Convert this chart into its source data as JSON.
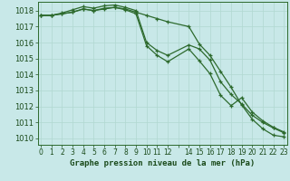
{
  "title": "Graphe pression niveau de la mer (hPa)",
  "x_values": [
    0,
    1,
    2,
    3,
    4,
    5,
    6,
    7,
    8,
    9,
    10,
    11,
    12,
    14,
    15,
    16,
    17,
    18,
    19,
    20,
    21,
    22,
    23
  ],
  "series": [
    [
      1017.7,
      1017.7,
      1017.8,
      1017.9,
      1018.1,
      1018.0,
      1018.1,
      1018.2,
      1018.1,
      1017.9,
      1017.7,
      1017.5,
      1017.3,
      1017.0,
      1015.9,
      1015.2,
      1014.2,
      1013.2,
      1012.1,
      1011.2,
      1010.6,
      1010.2,
      1010.1
    ],
    [
      1017.7,
      1017.7,
      1017.85,
      1018.05,
      1018.25,
      1018.15,
      1018.3,
      1018.35,
      1018.2,
      1018.0,
      1016.0,
      1015.5,
      1015.2,
      1015.85,
      1015.6,
      1014.9,
      1013.55,
      1012.75,
      1012.15,
      1011.45,
      1011.0,
      1010.65,
      1010.35
    ],
    [
      1017.7,
      1017.7,
      1017.8,
      1017.9,
      1018.1,
      1018.0,
      1018.15,
      1018.2,
      1018.05,
      1017.8,
      1015.8,
      1015.2,
      1014.8,
      1015.6,
      1014.85,
      1014.05,
      1012.7,
      1012.05,
      1012.55,
      1011.65,
      1011.1,
      1010.7,
      1010.4
    ]
  ],
  "line_color": "#2d6a2d",
  "marker_color": "#2d6a2d",
  "bg_color": "#c8e8e8",
  "grid_color": "#b0d8d0",
  "axis_label_color": "#1a4a1a",
  "ylim": [
    1009.6,
    1018.55
  ],
  "yticks": [
    1010,
    1011,
    1012,
    1013,
    1014,
    1015,
    1016,
    1017,
    1018
  ],
  "marker_size": 3.0,
  "line_width": 0.9
}
